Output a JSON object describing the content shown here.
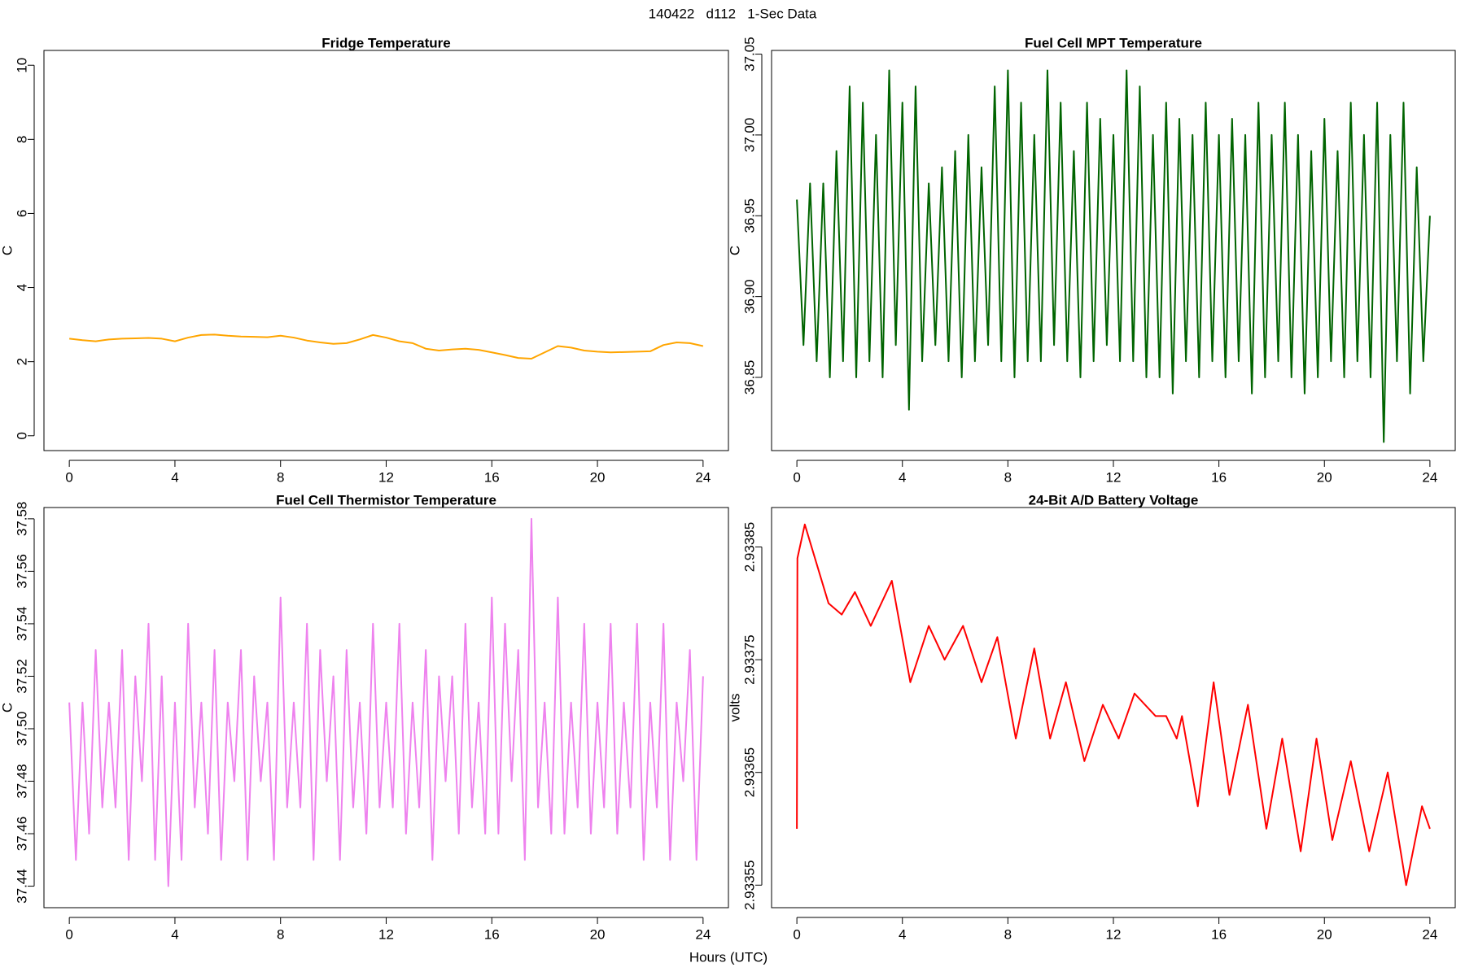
{
  "title": "140422   d112   1-Sec Data",
  "x_label": "Hours (UTC)",
  "chart_data": [
    {
      "type": "line",
      "title": "Fridge Temperature",
      "y_label": "C",
      "color": "#ffa500",
      "xlim": [
        -0.96,
        24.96
      ],
      "xticks": [
        0,
        4,
        8,
        12,
        16,
        20,
        24
      ],
      "ylim": [
        -0.4,
        10.4
      ],
      "yticks": [
        0,
        2,
        4,
        6,
        8,
        10
      ],
      "x": [
        0,
        0.5,
        1,
        1.5,
        2,
        2.5,
        3,
        3.5,
        4,
        4.5,
        5,
        5.5,
        6,
        6.5,
        7,
        7.5,
        8,
        8.5,
        9,
        9.5,
        10,
        10.5,
        11,
        11.5,
        12,
        12.5,
        13,
        13.5,
        14,
        14.5,
        15,
        15.5,
        16,
        16.5,
        17,
        17.5,
        18,
        18.5,
        19,
        19.5,
        20,
        20.5,
        21,
        21.5,
        22,
        22.5,
        23,
        23.5,
        24
      ],
      "values": [
        2.62,
        2.58,
        2.55,
        2.6,
        2.62,
        2.63,
        2.64,
        2.62,
        2.55,
        2.65,
        2.72,
        2.73,
        2.7,
        2.68,
        2.67,
        2.66,
        2.7,
        2.65,
        2.57,
        2.52,
        2.48,
        2.5,
        2.6,
        2.72,
        2.65,
        2.55,
        2.5,
        2.35,
        2.3,
        2.33,
        2.35,
        2.32,
        2.25,
        2.18,
        2.1,
        2.08,
        2.25,
        2.42,
        2.38,
        2.3,
        2.27,
        2.25,
        2.26,
        2.27,
        2.28,
        2.45,
        2.52,
        2.5,
        2.42
      ]
    },
    {
      "type": "line",
      "title": "Fuel Cell MPT Temperature",
      "y_label": "C",
      "color": "#006400",
      "xlim": [
        -0.96,
        24.96
      ],
      "xticks": [
        0,
        4,
        8,
        12,
        16,
        20,
        24
      ],
      "ylim": [
        36.8047,
        37.0523
      ],
      "yticks": [
        36.85,
        {
          "value": 36.9,
          "label": "36.90"
        },
        36.95,
        {
          "value": 37,
          "label": "37.00"
        },
        37.05
      ],
      "x": [
        0,
        0.25,
        0.5,
        0.75,
        1,
        1.25,
        1.5,
        1.75,
        2,
        2.25,
        2.5,
        2.75,
        3,
        3.25,
        3.5,
        3.75,
        4,
        4.25,
        4.5,
        4.75,
        5,
        5.25,
        5.5,
        5.75,
        6,
        6.25,
        6.5,
        6.75,
        7,
        7.25,
        7.5,
        7.75,
        8,
        8.25,
        8.5,
        8.75,
        9,
        9.25,
        9.5,
        9.75,
        10,
        10.25,
        10.5,
        10.75,
        11,
        11.25,
        11.5,
        11.75,
        12,
        12.25,
        12.5,
        12.75,
        13,
        13.25,
        13.5,
        13.75,
        14,
        14.25,
        14.5,
        14.75,
        15,
        15.25,
        15.5,
        15.75,
        16,
        16.25,
        16.5,
        16.75,
        17,
        17.25,
        17.5,
        17.75,
        18,
        18.25,
        18.5,
        18.75,
        19,
        19.25,
        19.5,
        19.75,
        20,
        20.25,
        20.5,
        20.75,
        21,
        21.25,
        21.5,
        21.75,
        22,
        22.25,
        22.5,
        22.75,
        23,
        23.25,
        23.5,
        23.75,
        24
      ],
      "values": [
        36.96,
        36.87,
        36.97,
        36.86,
        36.97,
        36.85,
        36.99,
        36.86,
        37.03,
        36.85,
        37.02,
        36.86,
        37.0,
        36.85,
        37.04,
        36.87,
        37.02,
        36.83,
        37.03,
        36.86,
        36.97,
        36.87,
        36.98,
        36.86,
        36.99,
        36.85,
        37.0,
        36.86,
        36.98,
        36.87,
        37.03,
        36.86,
        37.04,
        36.85,
        37.02,
        36.86,
        37.0,
        36.86,
        37.04,
        36.87,
        37.02,
        36.86,
        36.99,
        36.85,
        37.02,
        36.86,
        37.01,
        36.87,
        37.0,
        36.86,
        37.04,
        36.86,
        37.03,
        36.85,
        37.0,
        36.85,
        37.02,
        36.84,
        37.01,
        36.86,
        37.0,
        36.85,
        37.02,
        36.86,
        37.0,
        36.85,
        37.01,
        36.86,
        37.0,
        36.84,
        37.02,
        36.85,
        37.0,
        36.86,
        37.02,
        36.85,
        37.0,
        36.84,
        36.99,
        36.85,
        37.01,
        36.86,
        36.99,
        36.85,
        37.02,
        36.86,
        37.0,
        36.85,
        37.02,
        36.81,
        37.0,
        36.86,
        37.02,
        36.84,
        36.98,
        36.86,
        36.95
      ]
    },
    {
      "type": "line",
      "title": "Fuel Cell Thermistor Temperature",
      "y_label": "C",
      "color": "#ee82ee",
      "xlim": [
        -0.96,
        24.96
      ],
      "xticks": [
        0,
        4,
        8,
        12,
        16,
        20,
        24
      ],
      "ylim": [
        37.4318,
        37.5843
      ],
      "yticks": [
        37.44,
        37.46,
        37.48,
        {
          "value": 37.5,
          "label": "37.50"
        },
        37.52,
        37.54,
        37.56,
        37.58
      ],
      "x": [
        0,
        0.25,
        0.5,
        0.75,
        1,
        1.25,
        1.5,
        1.75,
        2,
        2.25,
        2.5,
        2.75,
        3,
        3.25,
        3.5,
        3.75,
        4,
        4.25,
        4.5,
        4.75,
        5,
        5.25,
        5.5,
        5.75,
        6,
        6.25,
        6.5,
        6.75,
        7,
        7.25,
        7.5,
        7.75,
        8,
        8.25,
        8.5,
        8.75,
        9,
        9.25,
        9.5,
        9.75,
        10,
        10.25,
        10.5,
        10.75,
        11,
        11.25,
        11.5,
        11.75,
        12,
        12.25,
        12.5,
        12.75,
        13,
        13.25,
        13.5,
        13.75,
        14,
        14.25,
        14.5,
        14.75,
        15,
        15.25,
        15.5,
        15.75,
        16,
        16.25,
        16.5,
        16.75,
        17,
        17.25,
        17.5,
        17.75,
        18,
        18.25,
        18.5,
        18.75,
        19,
        19.25,
        19.5,
        19.75,
        20,
        20.25,
        20.5,
        20.75,
        21,
        21.25,
        21.5,
        21.75,
        22,
        22.25,
        22.5,
        22.75,
        23,
        23.25,
        23.5,
        23.75,
        24
      ],
      "values": [
        37.51,
        37.45,
        37.51,
        37.46,
        37.53,
        37.47,
        37.51,
        37.47,
        37.53,
        37.45,
        37.52,
        37.48,
        37.54,
        37.45,
        37.52,
        37.44,
        37.51,
        37.45,
        37.54,
        37.47,
        37.51,
        37.46,
        37.53,
        37.45,
        37.51,
        37.48,
        37.53,
        37.45,
        37.52,
        37.48,
        37.51,
        37.45,
        37.55,
        37.47,
        37.51,
        37.47,
        37.54,
        37.45,
        37.53,
        37.48,
        37.52,
        37.45,
        37.53,
        37.47,
        37.51,
        37.46,
        37.54,
        37.47,
        37.51,
        37.47,
        37.54,
        37.46,
        37.51,
        37.47,
        37.53,
        37.45,
        37.52,
        37.48,
        37.52,
        37.46,
        37.54,
        37.47,
        37.51,
        37.46,
        37.55,
        37.46,
        37.54,
        37.48,
        37.53,
        37.45,
        37.58,
        37.47,
        37.51,
        37.46,
        37.55,
        37.46,
        37.51,
        37.47,
        37.54,
        37.46,
        37.51,
        37.47,
        37.54,
        37.46,
        37.51,
        37.47,
        37.54,
        37.45,
        37.51,
        37.47,
        37.54,
        37.45,
        37.51,
        37.48,
        37.53,
        37.45,
        37.52
      ]
    },
    {
      "type": "line",
      "title": "24-Bit A/D Battery Voltage",
      "y_label": "volts",
      "color": "#ff0000",
      "xlim": [
        -0.96,
        24.96
      ],
      "xticks": [
        0,
        4,
        8,
        12,
        16,
        20,
        24
      ],
      "ylim": [
        2.93353,
        2.933885
      ],
      "yticks": [
        2.93355,
        2.93365,
        2.93375,
        2.93385
      ],
      "x": [
        0,
        0.02,
        0.3,
        1.2,
        1.7,
        2.2,
        2.8,
        3.6,
        4.3,
        5.0,
        5.6,
        6.3,
        7.0,
        7.6,
        8.3,
        9.0,
        9.6,
        10.2,
        10.9,
        11.6,
        12.2,
        12.8,
        13.6,
        14.0,
        14.4,
        14.6,
        15.2,
        15.8,
        16.4,
        17.1,
        17.8,
        18.4,
        19.1,
        19.7,
        20.3,
        21.0,
        21.7,
        22.4,
        23.1,
        23.7,
        24
      ],
      "values": [
        2.9336,
        2.93384,
        2.93387,
        2.9338,
        2.93379,
        2.93381,
        2.93378,
        2.93382,
        2.93373,
        2.93378,
        2.93375,
        2.93378,
        2.93373,
        2.93377,
        2.93368,
        2.93376,
        2.93368,
        2.93373,
        2.93366,
        2.93371,
        2.93368,
        2.93372,
        2.9337,
        2.9337,
        2.93368,
        2.9337,
        2.93362,
        2.93373,
        2.93363,
        2.93371,
        2.9336,
        2.93368,
        2.93358,
        2.93368,
        2.93359,
        2.93366,
        2.93358,
        2.93365,
        2.93355,
        2.93362,
        2.9336
      ]
    }
  ]
}
